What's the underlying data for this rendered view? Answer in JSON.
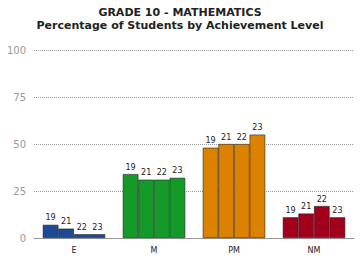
{
  "chart_data": {
    "type": "bar",
    "title": "GRADE 10 - MATHEMATICS",
    "subtitle": "Percentage of Students by Achievement Level",
    "categories": [
      "E",
      "M",
      "PM",
      "NM"
    ],
    "colors": [
      "#1c4a96",
      "#139a28",
      "#dc8200",
      "#a3001c"
    ],
    "series": [
      {
        "name": "19",
        "values": [
          7,
          34,
          48,
          11
        ]
      },
      {
        "name": "21",
        "values": [
          5,
          31,
          50,
          13
        ]
      },
      {
        "name": "22",
        "values": [
          2,
          31,
          50,
          17
        ]
      },
      {
        "name": "23",
        "values": [
          2,
          32,
          55,
          11
        ]
      }
    ],
    "ylim": [
      0,
      100
    ],
    "yticks": [
      0,
      25,
      50,
      75,
      100
    ],
    "grid": true
  }
}
